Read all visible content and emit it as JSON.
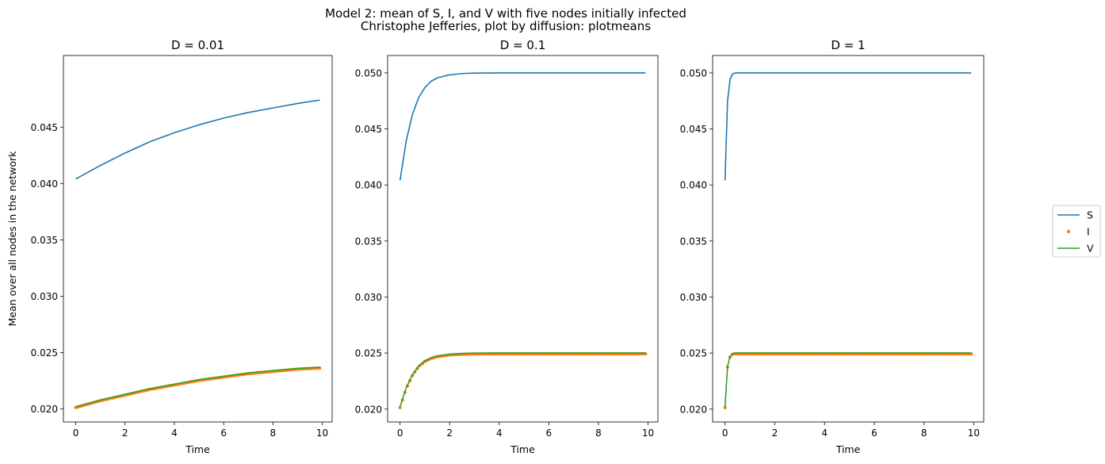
{
  "figure": {
    "title_line1": "Model 2: mean of S, I, and V with five nodes initially infected",
    "title_line2": "Christophe Jefferies, plot by diffusion: plotmeans"
  },
  "legend": {
    "entries": [
      {
        "label": "S",
        "style": "line",
        "color": "#1f77b4"
      },
      {
        "label": "I",
        "style": "marker",
        "color": "#ff7f0e"
      },
      {
        "label": "V",
        "style": "line",
        "color": "#2ca02c"
      }
    ],
    "placement": "right-center outside"
  },
  "chart_data": [
    {
      "type": "line",
      "title": "D = 0.01",
      "xlabel": "Time",
      "ylabel": "Mean over all nodes in the network",
      "xlim": [
        -0.5,
        10.4
      ],
      "ylim": [
        0.01885,
        0.05135
      ],
      "xticks": [
        0,
        2,
        4,
        6,
        8,
        10
      ],
      "yticks": [
        0.02,
        0.025,
        0.03,
        0.035,
        0.04,
        0.045
      ],
      "ytick_labels": [
        "0.020",
        "0.025",
        "0.030",
        "0.035",
        "0.040",
        "0.045"
      ],
      "grid": false,
      "series": [
        {
          "name": "S",
          "style": "line",
          "color": "#1f77b4",
          "x": [
            0,
            1,
            2,
            3,
            4,
            5,
            6,
            7,
            8,
            9,
            9.9
          ],
          "values": [
            0.0404,
            0.0416,
            0.0427,
            0.0437,
            0.0445,
            0.0452,
            0.0458,
            0.0463,
            0.0467,
            0.0471,
            0.0474
          ]
        },
        {
          "name": "I",
          "style": "marker",
          "color": "#ff7f0e",
          "x": [
            0,
            1,
            2,
            3,
            4,
            5,
            6,
            7,
            8,
            9,
            9.9
          ],
          "values": [
            0.0202,
            0.0208,
            0.0213,
            0.0218,
            0.0222,
            0.0226,
            0.0229,
            0.0232,
            0.0234,
            0.0236,
            0.0237
          ]
        },
        {
          "name": "V",
          "style": "line",
          "color": "#2ca02c",
          "x": [
            0,
            1,
            2,
            3,
            4,
            5,
            6,
            7,
            8,
            9,
            9.9
          ],
          "values": [
            0.0202,
            0.0208,
            0.0213,
            0.0218,
            0.0222,
            0.0226,
            0.0229,
            0.0232,
            0.0234,
            0.0236,
            0.0237
          ]
        }
      ]
    },
    {
      "type": "line",
      "title": "D = 0.1",
      "xlabel": "Time",
      "ylabel": "",
      "xlim": [
        -0.5,
        10.4
      ],
      "ylim": [
        0.01885,
        0.05155
      ],
      "xticks": [
        0,
        2,
        4,
        6,
        8,
        10
      ],
      "yticks": [
        0.02,
        0.025,
        0.03,
        0.035,
        0.04,
        0.045,
        0.05
      ],
      "ytick_labels": [
        "0.020",
        "0.025",
        "0.030",
        "0.035",
        "0.040",
        "0.045",
        "0.050"
      ],
      "grid": false,
      "series": [
        {
          "name": "S",
          "style": "line",
          "color": "#1f77b4",
          "x": [
            0,
            0.25,
            0.5,
            0.75,
            1,
            1.25,
            1.5,
            2,
            2.5,
            3,
            4,
            5,
            6,
            8,
            9.9
          ],
          "values": [
            0.0404,
            0.04394,
            0.04629,
            0.04779,
            0.04869,
            0.04925,
            0.04955,
            0.04983,
            0.04994,
            0.04998,
            0.05,
            0.05,
            0.05,
            0.05,
            0.05
          ]
        },
        {
          "name": "I",
          "style": "marker",
          "color": "#ff7f0e",
          "x": [
            0,
            0.25,
            0.5,
            0.75,
            1,
            1.25,
            1.5,
            2,
            2.5,
            3,
            4,
            5,
            6,
            8,
            9.9
          ],
          "values": [
            0.0202,
            0.0219,
            0.02306,
            0.02385,
            0.02431,
            0.02458,
            0.02474,
            0.0249,
            0.02496,
            0.02499,
            0.025,
            0.025,
            0.025,
            0.025,
            0.025
          ]
        },
        {
          "name": "V",
          "style": "line",
          "color": "#2ca02c",
          "x": [
            0,
            0.25,
            0.5,
            0.75,
            1,
            1.25,
            1.5,
            2,
            2.5,
            3,
            4,
            5,
            6,
            8,
            9.9
          ],
          "values": [
            0.0202,
            0.0219,
            0.02306,
            0.02385,
            0.02431,
            0.02458,
            0.02474,
            0.0249,
            0.02496,
            0.02499,
            0.025,
            0.025,
            0.025,
            0.025,
            0.025
          ]
        }
      ]
    },
    {
      "type": "line",
      "title": "D = 1",
      "xlabel": "Time",
      "ylabel": "",
      "xlim": [
        -0.5,
        10.4
      ],
      "ylim": [
        0.01885,
        0.05155
      ],
      "xticks": [
        0,
        2,
        4,
        6,
        8,
        10
      ],
      "yticks": [
        0.02,
        0.025,
        0.03,
        0.035,
        0.04,
        0.045,
        0.05
      ],
      "ytick_labels": [
        "0.020",
        "0.025",
        "0.030",
        "0.035",
        "0.040",
        "0.045",
        "0.050"
      ],
      "grid": false,
      "series": [
        {
          "name": "S",
          "style": "line",
          "color": "#1f77b4",
          "x": [
            0,
            0.1,
            0.2,
            0.3,
            0.4,
            0.5,
            0.6,
            1,
            2,
            5,
            9.9
          ],
          "values": [
            0.0404,
            0.0475,
            0.0494,
            0.0499,
            0.04998,
            0.05,
            0.05,
            0.05,
            0.05,
            0.05,
            0.05
          ]
        },
        {
          "name": "I",
          "style": "marker",
          "color": "#ff7f0e",
          "x": [
            0,
            0.1,
            0.2,
            0.3,
            0.4,
            0.5,
            0.6,
            1,
            2,
            5,
            9.9
          ],
          "values": [
            0.0202,
            0.0238,
            0.0247,
            0.02495,
            0.025,
            0.025,
            0.025,
            0.025,
            0.025,
            0.025,
            0.025
          ]
        },
        {
          "name": "V",
          "style": "line",
          "color": "#2ca02c",
          "x": [
            0,
            0.1,
            0.2,
            0.3,
            0.4,
            0.5,
            0.6,
            1,
            2,
            5,
            9.9
          ],
          "values": [
            0.0202,
            0.0238,
            0.0247,
            0.02495,
            0.025,
            0.025,
            0.025,
            0.025,
            0.025,
            0.025,
            0.025
          ]
        }
      ]
    }
  ]
}
